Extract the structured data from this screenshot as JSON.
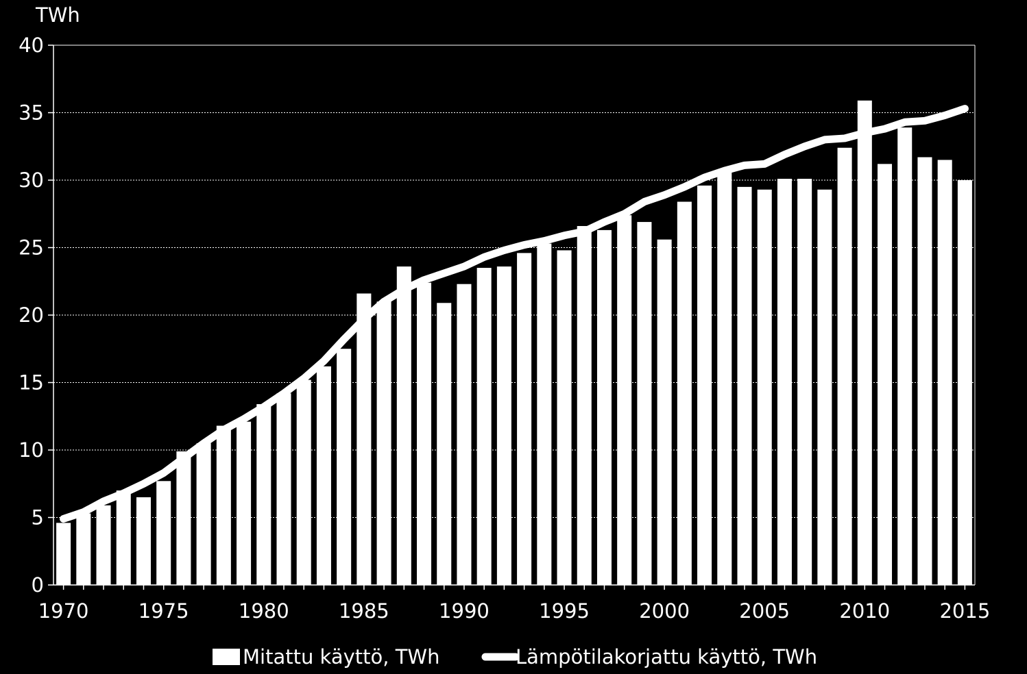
{
  "chart_data": {
    "type": "bar",
    "unit_label": "TWh",
    "ylim": [
      0,
      40
    ],
    "y_ticks": [
      "0",
      "5",
      "10",
      "15",
      "20",
      "25",
      "30",
      "35",
      "40"
    ],
    "x_ticks": [
      "1970",
      "1975",
      "1980",
      "1985",
      "1990",
      "1995",
      "2000",
      "2005",
      "2010",
      "2015"
    ],
    "x": [
      1970,
      1971,
      1972,
      1973,
      1974,
      1975,
      1976,
      1977,
      1978,
      1979,
      1980,
      1981,
      1982,
      1983,
      1984,
      1985,
      1986,
      1987,
      1988,
      1989,
      1990,
      1991,
      1992,
      1993,
      1994,
      1995,
      1996,
      1997,
      1998,
      1999,
      2000,
      2001,
      2002,
      2003,
      2004,
      2005,
      2006,
      2007,
      2008,
      2009,
      2010,
      2011,
      2012,
      2013,
      2014,
      2015
    ],
    "grid": "horizontal dotted",
    "legend_position": "bottom",
    "colors": {
      "background": "#000000",
      "bars": "#ffffff",
      "line": "#ffffff",
      "axis": "#ffffff",
      "grid": "#ffffff"
    },
    "series": [
      {
        "name": "Mitattu käyttö, TWh",
        "type": "bar",
        "values": [
          4.6,
          5.3,
          5.9,
          7.0,
          6.5,
          7.7,
          9.9,
          10.5,
          11.8,
          12.1,
          13.4,
          14.2,
          15.2,
          16.2,
          17.5,
          21.6,
          21.0,
          23.6,
          22.4,
          20.9,
          22.3,
          23.5,
          23.6,
          24.6,
          25.3,
          24.8,
          26.6,
          26.3,
          27.4,
          26.9,
          25.6,
          28.4,
          29.6,
          30.6,
          29.5,
          29.3,
          30.1,
          30.1,
          29.3,
          32.4,
          35.9,
          31.2,
          33.9,
          31.7,
          31.5,
          30.0
        ]
      },
      {
        "name": "Lämpötilakorjattu käyttö, TWh",
        "type": "line",
        "values": [
          4.9,
          5.4,
          6.2,
          6.8,
          7.5,
          8.3,
          9.4,
          10.5,
          11.5,
          12.3,
          13.2,
          14.2,
          15.3,
          16.6,
          18.2,
          19.7,
          21.0,
          21.9,
          22.6,
          23.1,
          23.6,
          24.3,
          24.8,
          25.2,
          25.5,
          25.9,
          26.2,
          26.9,
          27.5,
          28.4,
          28.9,
          29.5,
          30.2,
          30.7,
          31.1,
          31.2,
          31.9,
          32.5,
          33.0,
          33.1,
          33.5,
          33.8,
          34.3,
          34.4,
          34.8,
          35.3
        ]
      }
    ]
  }
}
